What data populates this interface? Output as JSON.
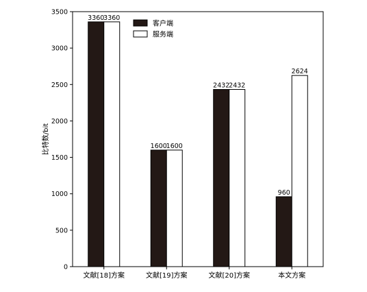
{
  "chart_data": {
    "type": "bar",
    "title": "",
    "xlabel": "",
    "ylabel": "比特数/bit",
    "categories": [
      "文献[18]方案",
      "文献[19]方案",
      "文献[20]方案",
      "本文方案"
    ],
    "series": [
      {
        "name": "客户端",
        "values": [
          3360,
          1600,
          2432,
          960
        ],
        "color": "#231815"
      },
      {
        "name": "服务端",
        "values": [
          3360,
          1600,
          2432,
          2624
        ],
        "color": "#ffffff"
      }
    ],
    "ylim": [
      0,
      3500
    ],
    "yticks": [
      0,
      500,
      1000,
      1500,
      2000,
      2500,
      3000,
      3500
    ],
    "grid": false,
    "legend_position": "top-left",
    "data_labels": true
  }
}
